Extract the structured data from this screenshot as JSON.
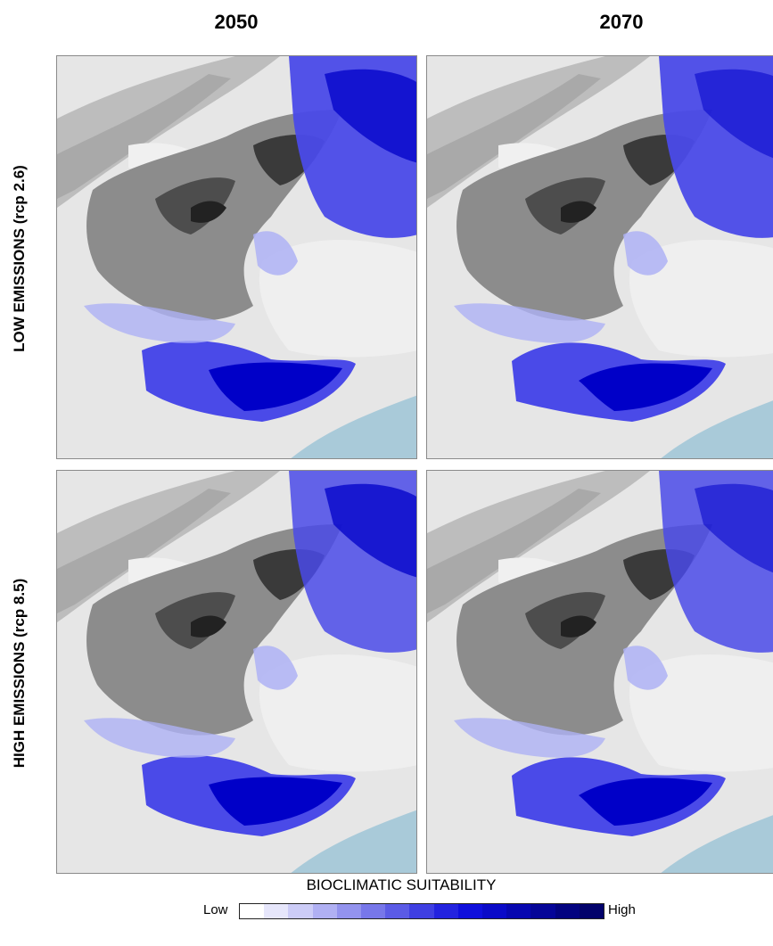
{
  "columns": [
    "2050",
    "2070"
  ],
  "rows": [
    "LOW EMISSIONS (rcp 2.6)",
    "HIGH EMISSIONS (rcp 8.5)"
  ],
  "legend": {
    "title": "BIOCLIMATIC SUITABILITY",
    "low_label": "Low",
    "high_label": "High",
    "colors": [
      "#ffffff",
      "#e6e6fb",
      "#ccccf7",
      "#b0b0f3",
      "#9393ee",
      "#7777ea",
      "#5b5be6",
      "#3f3fe2",
      "#2323df",
      "#0f0fdc",
      "#0a0ac8",
      "#0707b0",
      "#050598",
      "#030380",
      "#02026b"
    ]
  },
  "colors": {
    "sea": "#a9cad9",
    "lowland": "#e6e6e6",
    "mountain_dark": "#3a3a3a",
    "suitability_high": "#0000c8",
    "suitability_mid": "#4a4ae8",
    "suitability_low": "#aeb2f5"
  },
  "panels": [
    {
      "row": 0,
      "col": 0,
      "scenario": "rcp 2.6",
      "year": "2050"
    },
    {
      "row": 0,
      "col": 1,
      "scenario": "rcp 2.6",
      "year": "2070"
    },
    {
      "row": 1,
      "col": 0,
      "scenario": "rcp 8.5",
      "year": "2050"
    },
    {
      "row": 1,
      "col": 1,
      "scenario": "rcp 8.5",
      "year": "2070"
    }
  ]
}
